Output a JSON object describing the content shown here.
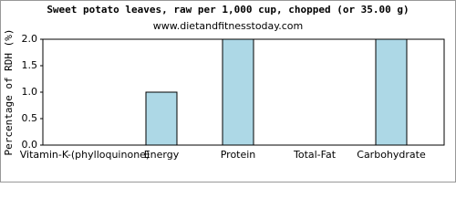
{
  "chart_data": {
    "type": "bar",
    "title": "Sweet potato leaves, raw per 1,000 cup, chopped (or 35.00 g)",
    "subtitle": "www.dietandfitnesstoday.com",
    "y_label": "Percentage of RDH (%)",
    "categories": [
      "Vitamin-K-(phylloquinone)",
      "Energy",
      "Protein",
      "Total-Fat",
      "Carbohydrate"
    ],
    "values": [
      0,
      1,
      2,
      0,
      2
    ],
    "color": "#add8e6",
    "ylim": [
      0,
      2
    ],
    "yticks": [
      {
        "value": 0,
        "label": "0.0"
      },
      {
        "value": 0.5,
        "label": "0.5"
      },
      {
        "value": 1,
        "label": "1.0"
      },
      {
        "value": 1.5,
        "label": "1.5"
      },
      {
        "value": 2,
        "label": "2.0"
      }
    ],
    "grid": false
  }
}
